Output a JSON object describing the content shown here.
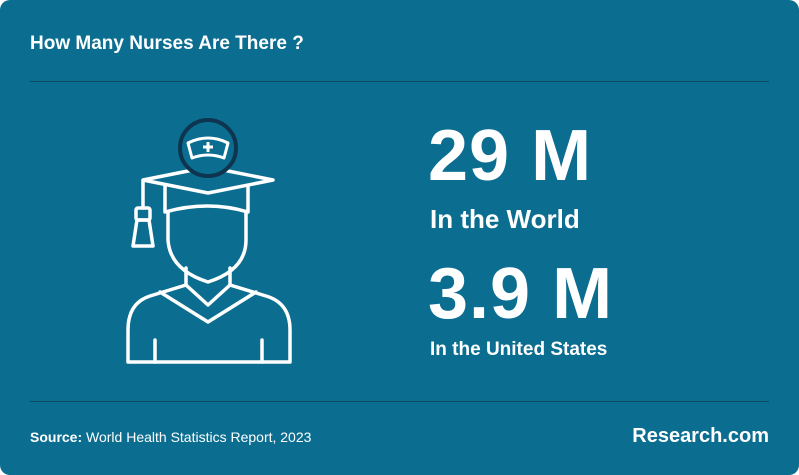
{
  "header": {
    "title": "How Many Nurses Are There ?"
  },
  "stats": [
    {
      "value": "29 M",
      "label": "In the World"
    },
    {
      "value": "3.9 M",
      "label": "In the United States"
    }
  ],
  "footer": {
    "source_label": "Source:",
    "source": "World Health Statistics Report, 2023",
    "logo": "Research.com"
  }
}
